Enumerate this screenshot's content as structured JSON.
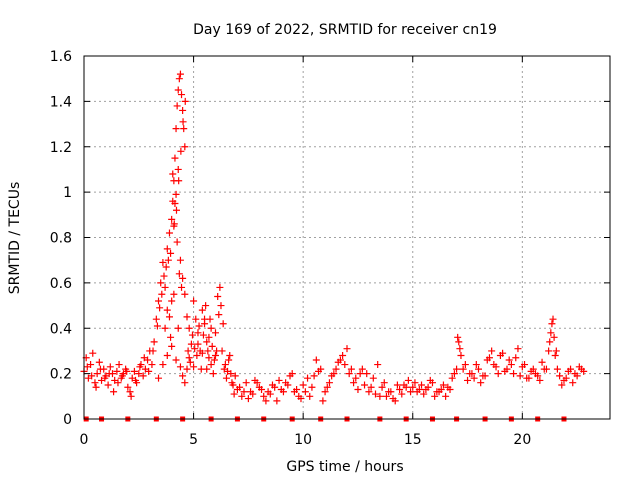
{
  "chart_data": {
    "type": "scatter",
    "title": "Day 169 of 2022, SRMTID for receiver cn19",
    "xlabel": "GPS time / hours",
    "ylabel": "SRMTID / TECUs",
    "xlim": [
      0,
      24
    ],
    "ylim": [
      0,
      1.6
    ],
    "x_ticks": [
      0,
      5,
      10,
      15,
      20
    ],
    "x_tick_labels": [
      "0",
      "5",
      "10",
      "15",
      "20"
    ],
    "y_ticks": [
      0,
      0.2,
      0.4,
      0.6,
      0.8,
      1.0,
      1.2,
      1.4,
      1.6
    ],
    "y_tick_labels": [
      "0",
      "0.2",
      "0.4",
      "0.6",
      "0.8",
      "1",
      "1.2",
      "1.4",
      "1.6"
    ],
    "grid": true,
    "legend": "none",
    "marker": "+",
    "color": "#ff0000",
    "series": [
      {
        "name": "SRMTID",
        "x": [
          0.0,
          0.1,
          0.2,
          0.3,
          0.4,
          0.5,
          0.6,
          0.7,
          0.8,
          0.9,
          1.0,
          1.1,
          1.2,
          1.3,
          1.4,
          1.5,
          1.6,
          1.7,
          1.8,
          1.9,
          2.0,
          2.1,
          2.2,
          2.3,
          2.4,
          2.5,
          2.6,
          2.7,
          2.8,
          2.9,
          3.0,
          3.1,
          3.2,
          3.3,
          3.4,
          3.5,
          3.6,
          3.7,
          3.8,
          3.9,
          4.0,
          4.05,
          4.1,
          4.15,
          4.2,
          4.25,
          4.3,
          4.35,
          4.4,
          4.45,
          4.5,
          4.55,
          4.6,
          4.7,
          4.8,
          4.9,
          5.0,
          5.1,
          5.2,
          5.3,
          5.4,
          5.5,
          5.6,
          5.7,
          5.8,
          5.9,
          6.0,
          6.1,
          6.2,
          6.3,
          6.4,
          6.5,
          6.6,
          6.7,
          6.8,
          6.9,
          7.0,
          7.2,
          7.4,
          7.6,
          7.8,
          8.0,
          8.2,
          8.4,
          8.6,
          8.8,
          9.0,
          9.2,
          9.4,
          9.6,
          9.8,
          10.0,
          10.2,
          10.4,
          10.6,
          10.8,
          11.0,
          11.2,
          11.4,
          11.6,
          11.8,
          12.0,
          12.2,
          12.4,
          12.6,
          12.8,
          13.0,
          13.2,
          13.4,
          13.6,
          13.8,
          14.0,
          14.2,
          14.4,
          14.6,
          14.8,
          15.0,
          15.2,
          15.4,
          15.6,
          15.8,
          16.0,
          16.2,
          16.4,
          16.6,
          16.8,
          17.0,
          17.1,
          17.2,
          17.4,
          17.6,
          17.8,
          18.0,
          18.2,
          18.4,
          18.6,
          18.8,
          19.0,
          19.2,
          19.4,
          19.6,
          19.8,
          20.0,
          20.2,
          20.4,
          20.6,
          20.8,
          21.0,
          21.2,
          21.3,
          21.4,
          21.5,
          21.6,
          21.8,
          22.0,
          22.2,
          22.4,
          22.6,
          22.8,
          0.15,
          0.35,
          0.55,
          0.75,
          0.95,
          1.15,
          1.35,
          1.55,
          1.75,
          1.95,
          2.15,
          2.35,
          2.55,
          2.75,
          2.95,
          3.15,
          3.35,
          3.45,
          3.55,
          3.65,
          3.75,
          3.85,
          3.95,
          4.12,
          4.22,
          4.32,
          4.42,
          4.52,
          4.62,
          4.75,
          4.85,
          4.95,
          5.05,
          5.15,
          5.25,
          5.35,
          5.45,
          5.55,
          5.65,
          5.75,
          5.85,
          5.95,
          6.05,
          6.15,
          6.25,
          6.35,
          6.45,
          6.55,
          6.65,
          6.75,
          6.85,
          7.1,
          7.3,
          7.5,
          7.7,
          7.9,
          8.1,
          8.3,
          8.5,
          8.7,
          8.9,
          9.1,
          9.3,
          9.5,
          9.7,
          9.9,
          10.1,
          10.3,
          10.5,
          10.7,
          10.9,
          11.1,
          11.3,
          11.5,
          11.7,
          11.9,
          12.1,
          12.3,
          12.5,
          12.7,
          12.9,
          13.1,
          13.3,
          13.5,
          13.7,
          13.9,
          14.1,
          14.3,
          14.5,
          14.7,
          14.9,
          15.1,
          15.3,
          15.5,
          15.7,
          15.9,
          16.1,
          16.3,
          16.5,
          16.7,
          16.9,
          17.05,
          17.15,
          17.3,
          17.5,
          17.7,
          17.9,
          18.1,
          18.3,
          18.5,
          18.7,
          18.9,
          19.1,
          19.3,
          19.5,
          19.7,
          19.9,
          20.1,
          20.3,
          20.5,
          20.7,
          20.9,
          21.1,
          21.25,
          21.35,
          21.45,
          21.55,
          21.7,
          21.9,
          22.1,
          22.3,
          22.5,
          22.7,
          3.4,
          3.6,
          3.8,
          3.95,
          4.0,
          4.1,
          4.2,
          4.3,
          4.4,
          4.5,
          4.6,
          4.7,
          4.8,
          5.0,
          5.2,
          5.4,
          5.6,
          4.05,
          4.15,
          4.25,
          4.35,
          4.45,
          4.1,
          4.2,
          4.3,
          4.4,
          3.9,
          4.0,
          3.7,
          3.8,
          4.5,
          4.6,
          5.5,
          5.7,
          5.8,
          6.0
        ],
        "y": [
          0.21,
          0.27,
          0.18,
          0.24,
          0.29,
          0.16,
          0.2,
          0.25,
          0.17,
          0.22,
          0.19,
          0.15,
          0.23,
          0.2,
          0.17,
          0.21,
          0.24,
          0.18,
          0.2,
          0.22,
          0.14,
          0.12,
          0.18,
          0.21,
          0.16,
          0.2,
          0.24,
          0.19,
          0.22,
          0.26,
          0.3,
          0.24,
          0.34,
          0.44,
          0.52,
          0.6,
          0.69,
          0.58,
          0.75,
          0.82,
          0.88,
          0.96,
          1.05,
          1.15,
          1.28,
          1.38,
          1.45,
          1.5,
          1.52,
          1.43,
          1.36,
          1.28,
          1.2,
          0.45,
          0.4,
          0.33,
          0.52,
          0.44,
          0.38,
          0.3,
          0.48,
          0.42,
          0.34,
          0.27,
          0.24,
          0.2,
          0.38,
          0.54,
          0.58,
          0.3,
          0.22,
          0.18,
          0.26,
          0.2,
          0.15,
          0.19,
          0.13,
          0.1,
          0.16,
          0.12,
          0.17,
          0.14,
          0.1,
          0.12,
          0.15,
          0.08,
          0.13,
          0.16,
          0.19,
          0.12,
          0.1,
          0.15,
          0.18,
          0.14,
          0.26,
          0.22,
          0.12,
          0.16,
          0.2,
          0.25,
          0.28,
          0.31,
          0.22,
          0.18,
          0.2,
          0.15,
          0.12,
          0.18,
          0.24,
          0.14,
          0.1,
          0.12,
          0.08,
          0.13,
          0.15,
          0.17,
          0.14,
          0.12,
          0.15,
          0.13,
          0.17,
          0.1,
          0.12,
          0.15,
          0.14,
          0.18,
          0.22,
          0.34,
          0.28,
          0.24,
          0.2,
          0.18,
          0.22,
          0.19,
          0.26,
          0.3,
          0.23,
          0.28,
          0.21,
          0.26,
          0.2,
          0.31,
          0.23,
          0.18,
          0.21,
          0.2,
          0.17,
          0.22,
          0.3,
          0.38,
          0.44,
          0.28,
          0.22,
          0.15,
          0.18,
          0.22,
          0.2,
          0.23,
          0.21,
          0.23,
          0.19,
          0.14,
          0.22,
          0.18,
          0.2,
          0.12,
          0.16,
          0.19,
          0.21,
          0.1,
          0.17,
          0.23,
          0.27,
          0.21,
          0.3,
          0.41,
          0.49,
          0.55,
          0.63,
          0.67,
          0.7,
          0.73,
          0.86,
          0.92,
          1.05,
          1.18,
          1.31,
          1.4,
          0.3,
          0.25,
          0.37,
          0.31,
          0.28,
          0.41,
          0.22,
          0.37,
          0.5,
          0.3,
          0.44,
          0.32,
          0.26,
          0.3,
          0.46,
          0.5,
          0.42,
          0.24,
          0.21,
          0.28,
          0.16,
          0.11,
          0.14,
          0.12,
          0.09,
          0.11,
          0.16,
          0.13,
          0.08,
          0.11,
          0.14,
          0.17,
          0.12,
          0.15,
          0.2,
          0.13,
          0.09,
          0.12,
          0.1,
          0.19,
          0.21,
          0.08,
          0.14,
          0.19,
          0.22,
          0.26,
          0.24,
          0.2,
          0.16,
          0.13,
          0.22,
          0.2,
          0.14,
          0.11,
          0.1,
          0.16,
          0.12,
          0.09,
          0.15,
          0.11,
          0.14,
          0.12,
          0.16,
          0.13,
          0.11,
          0.14,
          0.16,
          0.12,
          0.13,
          0.1,
          0.13,
          0.2,
          0.36,
          0.31,
          0.22,
          0.17,
          0.2,
          0.24,
          0.16,
          0.19,
          0.27,
          0.24,
          0.2,
          0.29,
          0.22,
          0.24,
          0.27,
          0.19,
          0.24,
          0.18,
          0.22,
          0.19,
          0.25,
          0.22,
          0.34,
          0.42,
          0.36,
          0.3,
          0.19,
          0.17,
          0.21,
          0.16,
          0.19,
          0.22,
          0.18,
          0.24,
          0.28,
          0.36,
          0.32,
          0.55,
          0.26,
          0.4,
          0.23,
          0.19,
          0.16,
          0.22,
          0.27,
          0.23,
          0.33,
          0.29,
          0.22,
          1.08,
          0.95,
          0.78,
          0.64,
          0.58,
          0.85,
          0.99,
          1.1,
          0.7,
          0.45,
          0.52,
          0.4,
          0.48,
          0.62,
          0.55,
          0.44,
          0.36,
          0.4,
          0.28
        ]
      }
    ],
    "gaps": [
      0.1,
      0.8,
      2.0,
      3.3,
      4.5,
      5.8,
      7.0,
      8.2,
      9.5,
      10.8,
      12.0,
      13.5,
      14.7,
      15.9,
      17.0,
      18.3,
      19.5,
      20.7,
      21.9
    ]
  }
}
